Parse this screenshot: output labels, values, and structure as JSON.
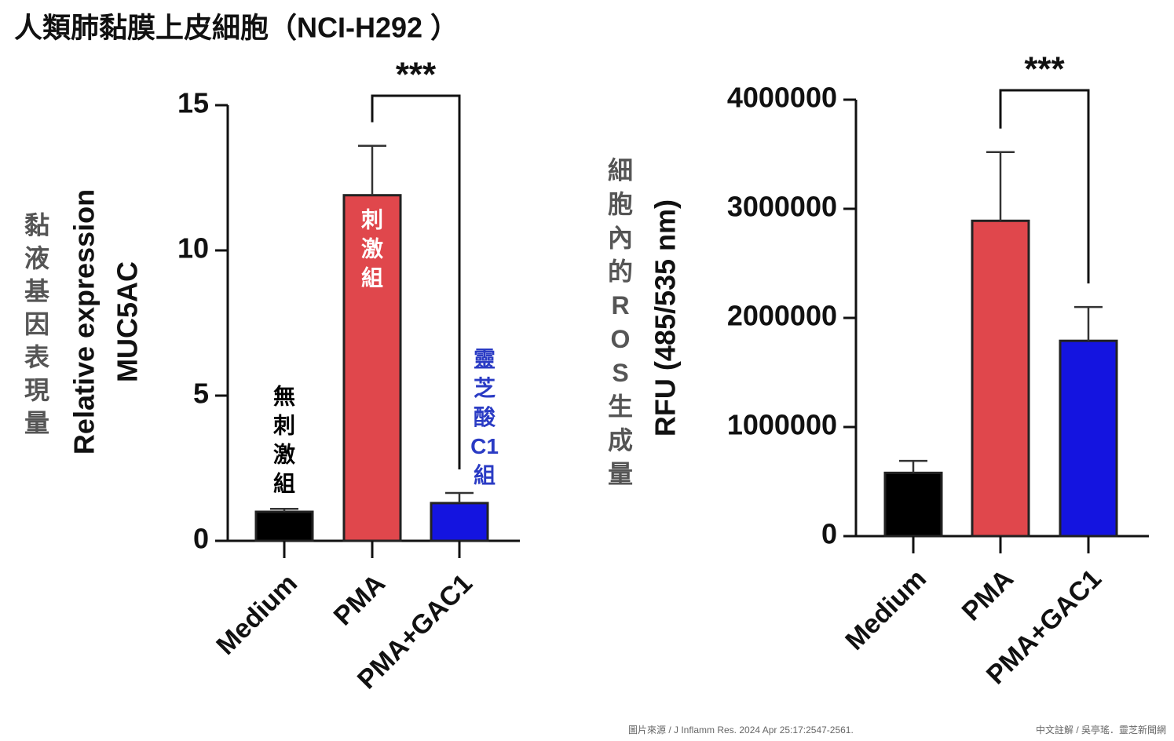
{
  "title": "人類肺黏膜上皮細胞（NCI-H292 ）",
  "chart_data": [
    {
      "type": "bar",
      "y_label": [
        "Relative expression",
        "MUC5AC"
      ],
      "side_label": "黏液基因表現量",
      "categories": [
        "Medium",
        "PMA",
        "PMA+GAC1"
      ],
      "series": [
        {
          "values": [
            1.0,
            11.9,
            1.3
          ],
          "errors": [
            0.1,
            1.7,
            0.35
          ],
          "colors": [
            "#000000",
            "#e0474c",
            "#1414e0"
          ]
        }
      ],
      "bar_labels": [
        "無刺激組",
        "刺激組",
        "靈芝酸C1組"
      ],
      "bar_label_colors": [
        "#000000",
        "#ffffff",
        "#2a3bc4"
      ],
      "significance": [
        {
          "label": "***",
          "between": [
            "PMA",
            "PMA+GAC1"
          ]
        }
      ],
      "ylim": [
        0,
        15
      ],
      "yticks": [
        0,
        5,
        10,
        15
      ]
    },
    {
      "type": "bar",
      "y_label": [
        "RFU (485/535 nm)"
      ],
      "side_label": "細胞內的ROS生成量",
      "categories": [
        "Medium",
        "PMA",
        "PMA+GAC1"
      ],
      "series": [
        {
          "values": [
            580000,
            2890000,
            1790000
          ],
          "errors": [
            110000,
            630000,
            310000
          ],
          "colors": [
            "#000000",
            "#e0474c",
            "#1414e0"
          ]
        }
      ],
      "significance": [
        {
          "label": "***",
          "between": [
            "PMA",
            "PMA+GAC1"
          ]
        }
      ],
      "ylim": [
        0,
        4000000
      ],
      "yticks": [
        0,
        1000000,
        2000000,
        3000000,
        4000000
      ]
    }
  ],
  "source": "圖片來源 / J Inflamm Res. 2024 Apr 25:17:2547-2561.",
  "credit": "中文註解 / 吳亭瑤．靈芝新聞網"
}
